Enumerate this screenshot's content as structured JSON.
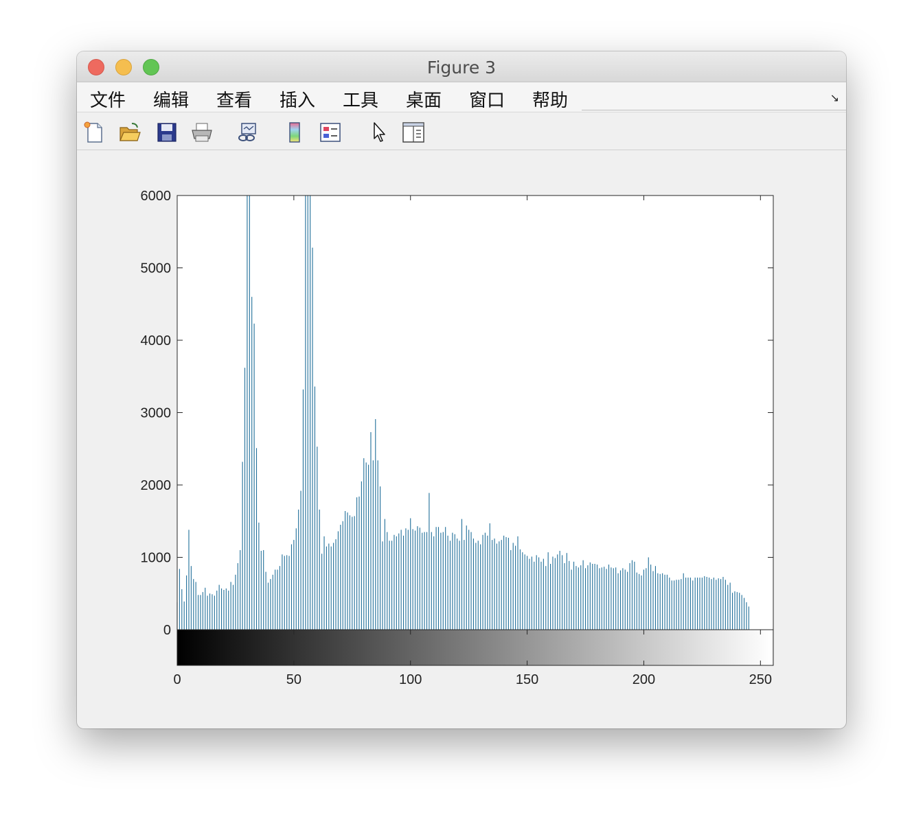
{
  "window": {
    "title": "Figure 3"
  },
  "menu": [
    "文件",
    "编辑",
    "查看",
    "插入",
    "工具",
    "桌面",
    "窗口",
    "帮助"
  ],
  "toolbar": [
    "new-figure",
    "open-file",
    "save",
    "print",
    "link-plot",
    "insert-colorbar",
    "insert-legend",
    "edit-plot-arrow",
    "property-inspector"
  ],
  "colors": {
    "bars": "#1f6e99",
    "axes": "#262626"
  },
  "chart_data": {
    "type": "bar",
    "subtype": "histogram (imhist) with grayscale colorbar",
    "title": "",
    "xlabel": "",
    "ylabel": "",
    "xlim": [
      0,
      255
    ],
    "ylim": [
      0,
      6000
    ],
    "xticks": [
      0,
      50,
      100,
      150,
      200,
      250
    ],
    "yticks": [
      0,
      1000,
      2000,
      3000,
      4000,
      5000,
      6000
    ],
    "x_start": 0,
    "values": [
      380,
      840,
      560,
      390,
      750,
      1380,
      880,
      700,
      660,
      480,
      480,
      520,
      580,
      470,
      500,
      490,
      470,
      540,
      620,
      570,
      550,
      570,
      540,
      660,
      620,
      760,
      920,
      1100,
      2320,
      3620,
      6000,
      6000,
      4600,
      4230,
      2510,
      1480,
      1090,
      1100,
      800,
      650,
      700,
      760,
      830,
      830,
      880,
      1040,
      1020,
      1030,
      1020,
      1180,
      1240,
      1400,
      1660,
      1920,
      3320,
      6000,
      6000,
      6000,
      5280,
      3360,
      2530,
      1660,
      1050,
      1290,
      1150,
      1190,
      1150,
      1200,
      1250,
      1360,
      1450,
      1500,
      1640,
      1620,
      1580,
      1560,
      1570,
      1830,
      1840,
      2050,
      2370,
      2310,
      2280,
      2730,
      2340,
      2910,
      2340,
      1980,
      1220,
      1530,
      1350,
      1230,
      1230,
      1310,
      1290,
      1330,
      1380,
      1300,
      1400,
      1380,
      1540,
      1390,
      1370,
      1430,
      1410,
      1340,
      1350,
      1350,
      1890,
      1350,
      1290,
      1420,
      1420,
      1340,
      1350,
      1420,
      1300,
      1230,
      1340,
      1320,
      1260,
      1230,
      1530,
      1240,
      1440,
      1380,
      1350,
      1260,
      1200,
      1230,
      1180,
      1310,
      1340,
      1300,
      1470,
      1240,
      1260,
      1190,
      1220,
      1240,
      1300,
      1280,
      1270,
      1100,
      1200,
      1160,
      1290,
      1110,
      1070,
      1040,
      1020,
      980,
      1010,
      940,
      1030,
      1000,
      940,
      980,
      880,
      1070,
      910,
      1010,
      990,
      1040,
      1090,
      1030,
      920,
      1060,
      950,
      830,
      940,
      880,
      860,
      890,
      960,
      850,
      890,
      930,
      910,
      910,
      900,
      850,
      860,
      870,
      840,
      900,
      860,
      850,
      860,
      780,
      820,
      850,
      830,
      800,
      920,
      960,
      940,
      790,
      770,
      750,
      830,
      850,
      1000,
      900,
      810,
      880,
      780,
      770,
      780,
      760,
      760,
      720,
      680,
      680,
      690,
      690,
      700,
      780,
      720,
      720,
      720,
      680,
      720,
      720,
      720,
      720,
      740,
      730,
      720,
      700,
      720,
      690,
      710,
      700,
      730,
      690,
      620,
      650,
      510,
      530,
      520,
      510,
      480,
      440,
      380,
      320
    ]
  }
}
